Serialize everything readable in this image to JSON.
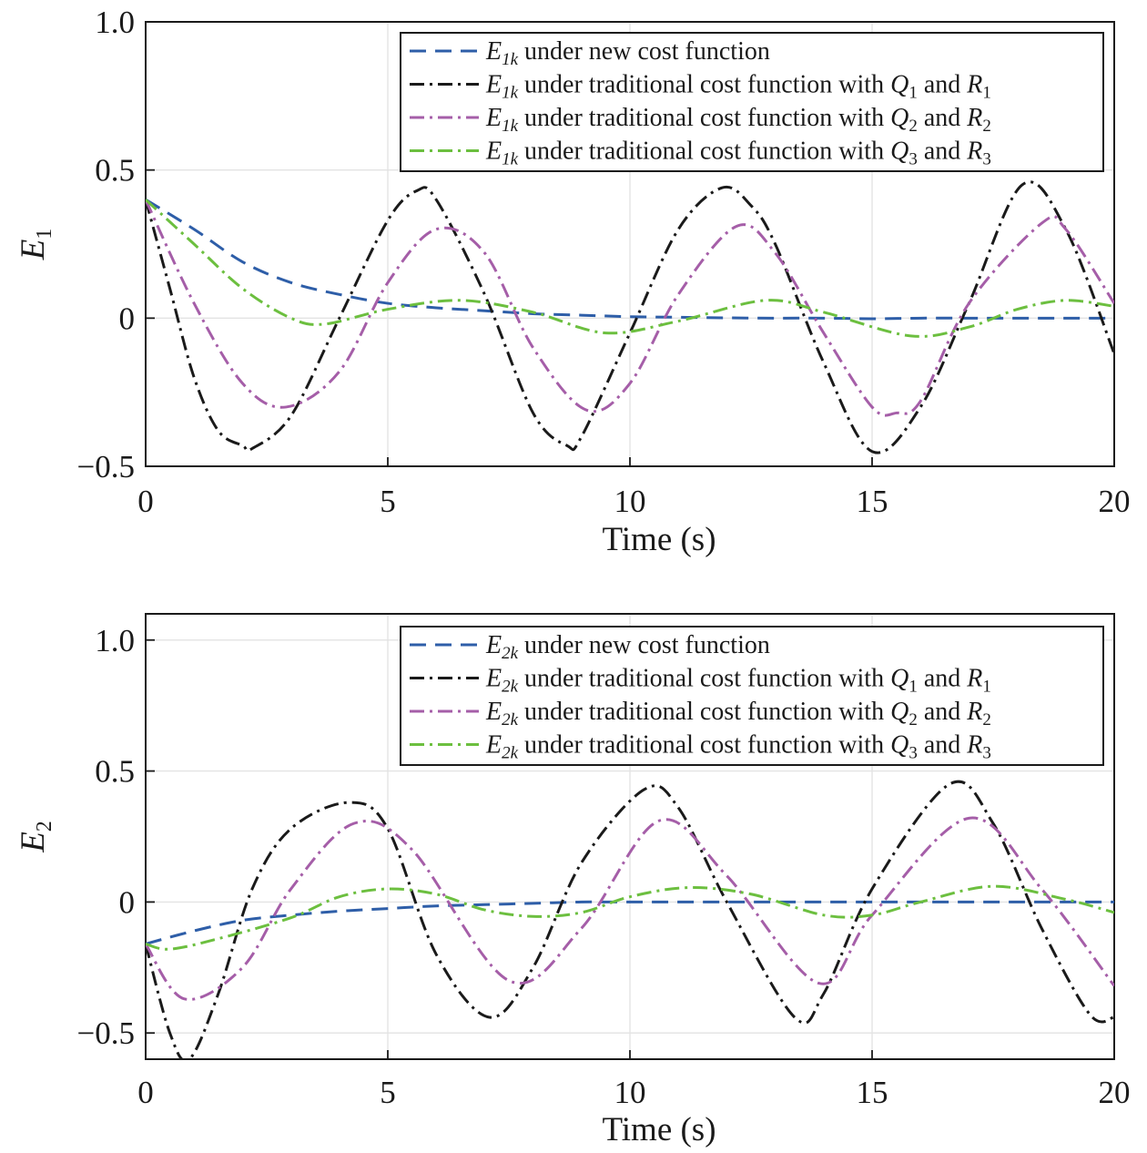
{
  "chart_data": [
    {
      "type": "line",
      "xlabel": "Time (s)",
      "ylabel": "E1",
      "ylabel_main": "E",
      "ylabel_sub": "1",
      "xlim": [
        0,
        20
      ],
      "ylim": [
        -0.5,
        1.0
      ],
      "xticks": [
        0,
        5,
        10,
        15,
        20
      ],
      "xtick_labels": [
        "0",
        "5",
        "10",
        "15",
        "20"
      ],
      "yticks": [
        -0.5,
        0,
        0.5,
        1.0
      ],
      "ytick_labels": [
        "−0.5",
        "0",
        "0.5",
        "1.0"
      ],
      "grid": true,
      "legend_position": "top-right",
      "series": [
        {
          "name": "E1k under new cost function",
          "legend": {
            "sym": "E",
            "sub": "1k",
            "text": " under new cost function",
            "q": "",
            "qsub": "",
            "mid": "",
            "r": "",
            "rsub": ""
          },
          "color": "#2e5ea8",
          "dash": "18 10",
          "x": [
            0,
            1,
            2,
            3,
            4,
            5,
            6,
            7,
            8,
            9,
            10,
            11,
            12,
            13,
            14,
            15,
            16,
            17,
            18,
            19,
            20
          ],
          "y": [
            0.4,
            0.3,
            0.19,
            0.12,
            0.08,
            0.05,
            0.035,
            0.025,
            0.015,
            0.01,
            0.005,
            0.003,
            0.001,
            0,
            0,
            -0.002,
            0,
            0,
            0,
            0,
            0
          ]
        },
        {
          "name": "E1k under traditional cost function with Q1 and R1",
          "legend": {
            "sym": "E",
            "sub": "1k",
            "text": " under traditional cost function with ",
            "q": "Q",
            "qsub": "1",
            "mid": " and ",
            "r": "R",
            "rsub": "1"
          },
          "color": "#1a1a1a",
          "dash": "16 6 3 6",
          "x": [
            0,
            0.5,
            1,
            1.5,
            2,
            2.2,
            3,
            4,
            5,
            5.6,
            6,
            7,
            8,
            8.7,
            9,
            10,
            11,
            11.9,
            12.5,
            13,
            14,
            15,
            16,
            17,
            18.1,
            19,
            20
          ],
          "y": [
            0.4,
            0.1,
            -0.2,
            -0.38,
            -0.43,
            -0.44,
            -0.33,
            0.0,
            0.33,
            0.43,
            0.4,
            0.08,
            -0.32,
            -0.43,
            -0.4,
            -0.05,
            0.3,
            0.44,
            0.38,
            0.25,
            -0.15,
            -0.45,
            -0.3,
            0.05,
            0.45,
            0.3,
            -0.12
          ]
        },
        {
          "name": "E1k under traditional cost function with Q2 and R2",
          "legend": {
            "sym": "E",
            "sub": "1k",
            "text": " under traditional cost function with ",
            "q": "Q",
            "qsub": "2",
            "mid": " and ",
            "r": "R",
            "rsub": "2"
          },
          "color": "#a55ea8",
          "dash": "16 6 3 6",
          "x": [
            0,
            1,
            2,
            2.9,
            4,
            5,
            6,
            7,
            8,
            9.1,
            10,
            11,
            12.2,
            13,
            14,
            15,
            15.5,
            16,
            17,
            18.5,
            19,
            20
          ],
          "y": [
            0.4,
            0.05,
            -0.22,
            -0.3,
            -0.18,
            0.12,
            0.3,
            0.22,
            -0.1,
            -0.31,
            -0.22,
            0.08,
            0.31,
            0.22,
            -0.05,
            -0.3,
            -0.32,
            -0.28,
            0.05,
            0.32,
            0.3,
            0.05
          ]
        },
        {
          "name": "E1k under traditional cost function with Q3 and R3",
          "legend": {
            "sym": "E",
            "sub": "1k",
            "text": " under traditional cost function with ",
            "q": "Q",
            "qsub": "3",
            "mid": " and ",
            "r": "R",
            "rsub": "3"
          },
          "color": "#6cbf3f",
          "dash": "16 6 3 6",
          "x": [
            0,
            1,
            2,
            3,
            3.7,
            5,
            6.5,
            8,
            9.5,
            11,
            12.8,
            14,
            15.8,
            17,
            18,
            19,
            20
          ],
          "y": [
            0.4,
            0.25,
            0.1,
            0.0,
            -0.02,
            0.03,
            0.06,
            0.02,
            -0.05,
            -0.01,
            0.06,
            0.02,
            -0.06,
            -0.03,
            0.03,
            0.06,
            0.04
          ]
        }
      ]
    },
    {
      "type": "line",
      "xlabel": "Time (s)",
      "ylabel": "E2",
      "ylabel_main": "E",
      "ylabel_sub": "2",
      "xlim": [
        0,
        20
      ],
      "ylim": [
        -0.6,
        1.1
      ],
      "xticks": [
        0,
        5,
        10,
        15,
        20
      ],
      "xtick_labels": [
        "0",
        "5",
        "10",
        "15",
        "20"
      ],
      "yticks": [
        -0.5,
        0,
        0.5,
        1.0
      ],
      "ytick_labels": [
        "−0.5",
        "0",
        "0.5",
        "1.0"
      ],
      "grid": true,
      "legend_position": "top-right",
      "series": [
        {
          "name": "E2k under new cost function",
          "legend": {
            "sym": "E",
            "sub": "2k",
            "text": " under new cost function",
            "q": "",
            "qsub": "",
            "mid": "",
            "r": "",
            "rsub": ""
          },
          "color": "#2e5ea8",
          "dash": "18 10",
          "x": [
            0,
            1,
            2,
            3,
            4,
            5,
            6,
            7,
            8,
            9,
            10,
            12,
            14,
            16,
            18,
            20
          ],
          "y": [
            -0.16,
            -0.11,
            -0.07,
            -0.05,
            -0.035,
            -0.025,
            -0.015,
            -0.01,
            -0.005,
            0,
            0,
            0,
            0,
            0,
            0,
            0
          ]
        },
        {
          "name": "E2k under traditional cost function with Q1 and R1",
          "legend": {
            "sym": "E",
            "sub": "2k",
            "text": " under traditional cost function with ",
            "q": "Q",
            "qsub": "1",
            "mid": " and ",
            "r": "R",
            "rsub": "1"
          },
          "color": "#1a1a1a",
          "dash": "16 6 3 6",
          "x": [
            0,
            0.5,
            0.9,
            1.5,
            2.2,
            3,
            4.2,
            5,
            6,
            7.1,
            8,
            9,
            10.3,
            11,
            12,
            13.4,
            14,
            15,
            16.6,
            17.5,
            18.5,
            19.5,
            20
          ],
          "y": [
            -0.16,
            -0.5,
            -0.6,
            -0.35,
            0.05,
            0.28,
            0.38,
            0.28,
            -0.2,
            -0.44,
            -0.25,
            0.15,
            0.43,
            0.36,
            0.0,
            -0.44,
            -0.35,
            0.05,
            0.45,
            0.3,
            -0.1,
            -0.43,
            -0.44
          ]
        },
        {
          "name": "E2k under traditional cost function with Q2 and R2",
          "legend": {
            "sym": "E",
            "sub": "2k",
            "text": " under traditional cost function with ",
            "q": "Q",
            "qsub": "2",
            "mid": " and ",
            "r": "R",
            "rsub": "2"
          },
          "color": "#a55ea8",
          "dash": "16 6 3 6",
          "x": [
            0,
            0.8,
            2,
            3,
            4.3,
            5.5,
            7.5,
            9,
            10.6,
            12,
            13.9,
            15,
            17,
            18.5,
            20
          ],
          "y": [
            -0.16,
            -0.37,
            -0.25,
            0.05,
            0.3,
            0.2,
            -0.3,
            -0.1,
            0.31,
            0.1,
            -0.31,
            -0.05,
            0.32,
            0.05,
            -0.32
          ]
        },
        {
          "name": "E2k under traditional cost function with Q3 and R3",
          "legend": {
            "sym": "E",
            "sub": "2k",
            "text": " under traditional cost function with ",
            "q": "Q",
            "qsub": "3",
            "mid": " and ",
            "r": "R",
            "rsub": "3"
          },
          "color": "#6cbf3f",
          "dash": "16 6 3 6",
          "x": [
            0,
            0.5,
            1.5,
            3,
            4,
            5,
            6,
            7,
            8,
            9,
            10,
            11.2,
            12.5,
            14,
            15,
            16,
            17.5,
            19,
            20
          ],
          "y": [
            -0.16,
            -0.18,
            -0.14,
            -0.06,
            0.02,
            0.05,
            0.03,
            -0.03,
            -0.055,
            -0.04,
            0.02,
            0.055,
            0.03,
            -0.05,
            -0.05,
            0.0,
            0.06,
            0.01,
            -0.04
          ]
        }
      ]
    }
  ]
}
